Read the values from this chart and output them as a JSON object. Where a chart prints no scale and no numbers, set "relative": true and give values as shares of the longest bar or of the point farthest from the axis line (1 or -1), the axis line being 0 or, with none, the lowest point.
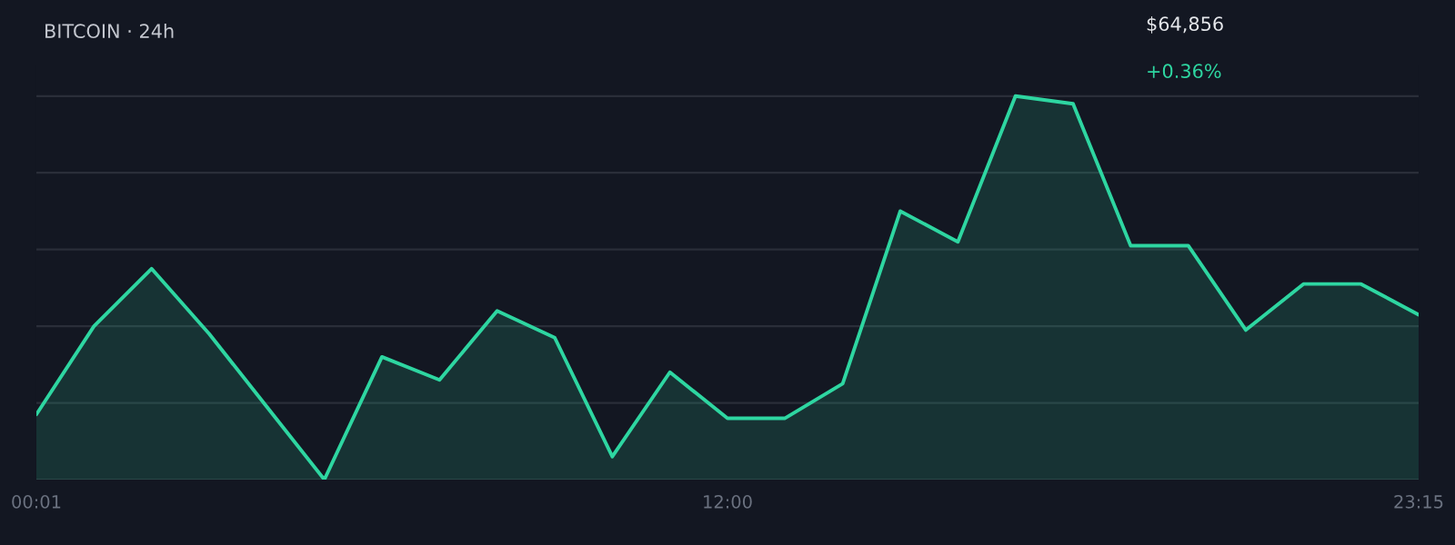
{
  "chart_data": {
    "type": "area",
    "title": "BITCOIN · 24h",
    "relative": true,
    "grid": "y",
    "annotations": [
      "$64,856",
      "+0.36%"
    ],
    "categories": [
      "00:01",
      null,
      null,
      null,
      null,
      null,
      null,
      null,
      null,
      null,
      null,
      null,
      "12:00",
      null,
      null,
      null,
      null,
      null,
      null,
      null,
      null,
      null,
      null,
      null,
      "23:15"
    ],
    "series": [
      {
        "color": "#2ed6a1",
        "values": [
          0.17,
          0.4,
          0.55,
          0.38,
          0.19,
          0.0,
          0.32,
          0.26,
          0.44,
          0.37,
          0.06,
          0.28,
          0.16,
          0.16,
          0.25,
          0.7,
          0.62,
          1.0,
          0.98,
          0.61,
          0.61,
          0.39,
          0.51,
          0.51,
          0.43
        ]
      }
    ]
  }
}
